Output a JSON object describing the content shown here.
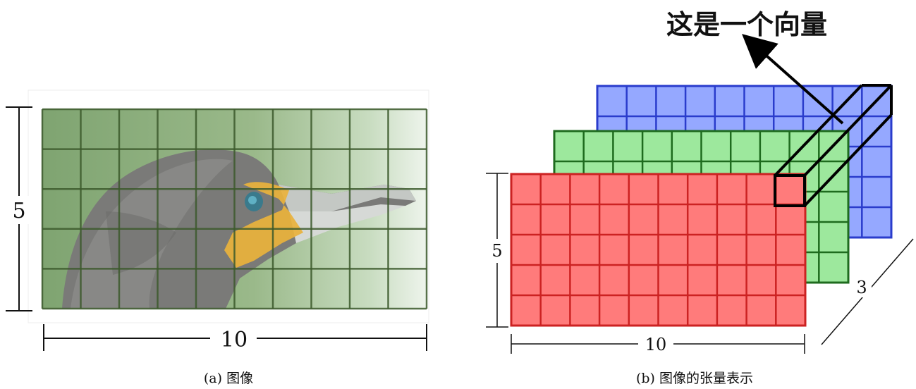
{
  "panel_a": {
    "caption": "(a) 图像",
    "rows_label": "5",
    "cols_label": "10",
    "grid": {
      "rows": 5,
      "cols": 10
    },
    "grid_color": "#3c5a2c",
    "subject_icon": "cormorant-bird-head"
  },
  "panel_b": {
    "caption": "(b) 图像的张量表示",
    "rows_label": "5",
    "cols_label": "10",
    "depth_label": "3",
    "callout": "这是一个向量",
    "channels": [
      {
        "color": "#ff7b7b",
        "border": "#cc2222"
      },
      {
        "color": "#9de89d",
        "border": "#1e6b1e"
      },
      {
        "color": "#95a8ff",
        "border": "#2a3ccc"
      }
    ]
  }
}
